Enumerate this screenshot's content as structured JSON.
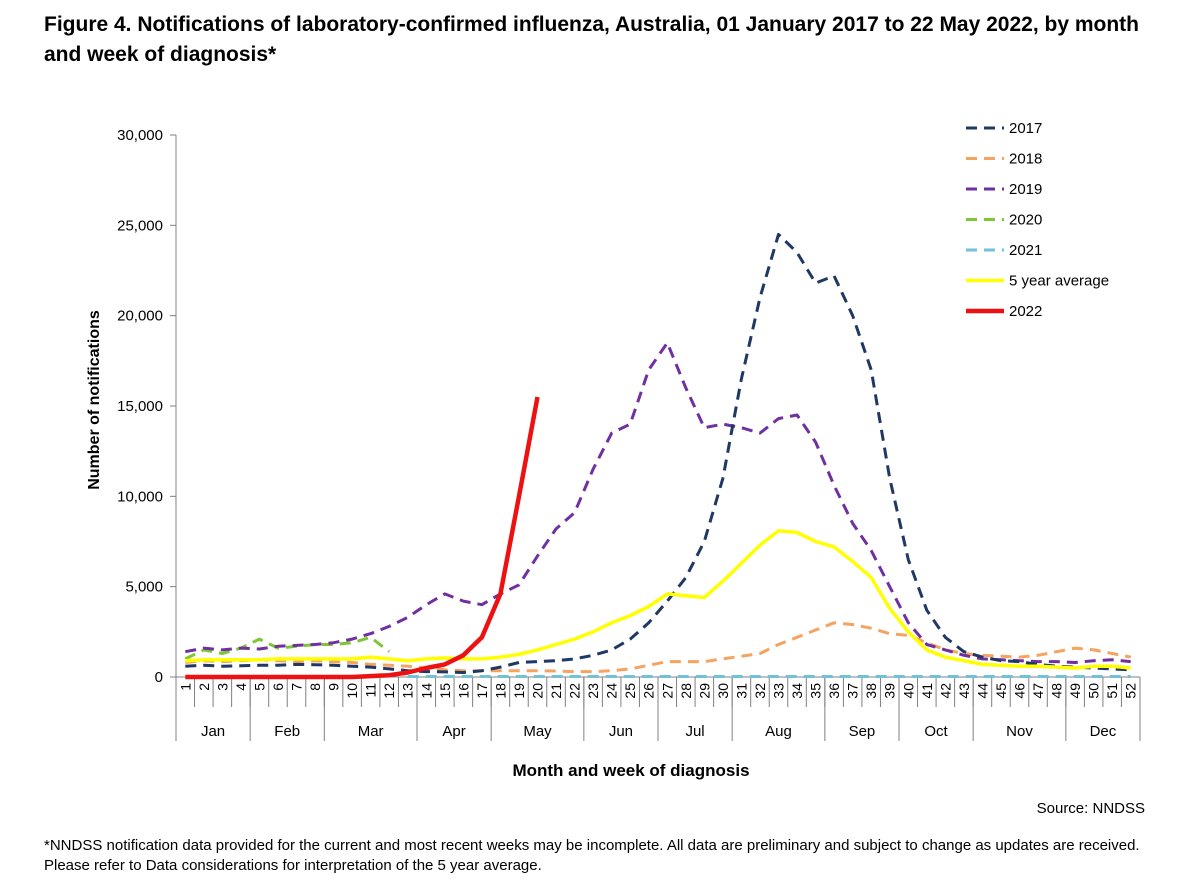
{
  "figure": {
    "title": "Figure 4. Notifications of laboratory-confirmed influenza, Australia, 01 January 2017 to 22 May 2022, by month and week of diagnosis*",
    "source": "Source: NNDSS",
    "footnote": "*NNDSS notification data provided for the current and most recent weeks may be incomplete. All data are preliminary and subject to change as updates are received. Please refer to Data considerations for interpretation of the 5 year average."
  },
  "chart_data": {
    "type": "line",
    "xlabel": "Month and week of diagnosis",
    "ylabel": "Number of notifications",
    "ylim": [
      0,
      30000
    ],
    "yticks": [
      0,
      5000,
      10000,
      15000,
      20000,
      25000,
      30000
    ],
    "ytick_labels": [
      "0",
      "5,000",
      "10,000",
      "15,000",
      "20,000",
      "25,000",
      "30,000"
    ],
    "weeks": [
      "1",
      "2",
      "3",
      "4",
      "5",
      "6",
      "7",
      "8",
      "9",
      "10",
      "11",
      "12",
      "13",
      "14",
      "15",
      "16",
      "17",
      "18",
      "19",
      "20",
      "21",
      "22",
      "23",
      "24",
      "25",
      "26",
      "27",
      "28",
      "29",
      "30",
      "31",
      "32",
      "33",
      "34",
      "35",
      "36",
      "37",
      "38",
      "39",
      "40",
      "41",
      "42",
      "43",
      "44",
      "45",
      "46",
      "47",
      "48",
      "49",
      "50",
      "51",
      "52"
    ],
    "months": [
      {
        "label": "Jan",
        "start": 1,
        "end": 4
      },
      {
        "label": "Feb",
        "start": 5,
        "end": 8
      },
      {
        "label": "Mar",
        "start": 9,
        "end": 13
      },
      {
        "label": "Apr",
        "start": 14,
        "end": 17
      },
      {
        "label": "May",
        "start": 18,
        "end": 22
      },
      {
        "label": "Jun",
        "start": 23,
        "end": 26
      },
      {
        "label": "Jul",
        "start": 27,
        "end": 30
      },
      {
        "label": "Aug",
        "start": 31,
        "end": 35
      },
      {
        "label": "Sep",
        "start": 36,
        "end": 39
      },
      {
        "label": "Oct",
        "start": 40,
        "end": 43
      },
      {
        "label": "Nov",
        "start": 44,
        "end": 48
      },
      {
        "label": "Dec",
        "start": 49,
        "end": 52
      }
    ],
    "legend_position": "top-right",
    "series": [
      {
        "name": "2017",
        "color": "#1f3864",
        "style": "dashed",
        "values": [
          600,
          650,
          600,
          620,
          650,
          650,
          700,
          680,
          650,
          600,
          550,
          450,
          350,
          300,
          280,
          250,
          350,
          550,
          800,
          850,
          900,
          1000,
          1200,
          1500,
          2100,
          3000,
          4200,
          5500,
          7500,
          11000,
          16500,
          21000,
          24500,
          23500,
          21800,
          22200,
          20000,
          17000,
          11000,
          6500,
          3700,
          2200,
          1400,
          1100,
          900,
          850,
          700,
          600,
          550,
          500,
          450,
          400
        ]
      },
      {
        "name": "2018",
        "color": "#f4a460",
        "style": "dashed",
        "values": [
          800,
          900,
          850,
          900,
          950,
          900,
          850,
          900,
          850,
          800,
          700,
          650,
          600,
          500,
          400,
          350,
          350,
          350,
          350,
          350,
          330,
          300,
          300,
          350,
          450,
          650,
          850,
          850,
          850,
          1000,
          1150,
          1300,
          1800,
          2200,
          2600,
          3000,
          2900,
          2700,
          2400,
          2300,
          1900,
          1500,
          1300,
          1200,
          1150,
          1100,
          1200,
          1400,
          1600,
          1500,
          1300,
          1100
        ]
      },
      {
        "name": "2019",
        "color": "#7030a0",
        "style": "dashed",
        "values": [
          1400,
          1600,
          1500,
          1600,
          1550,
          1700,
          1750,
          1800,
          1900,
          2100,
          2400,
          2800,
          3300,
          4000,
          4600,
          4200,
          4000,
          4600,
          5100,
          6700,
          8200,
          9100,
          11500,
          13500,
          14000,
          17000,
          18500,
          16000,
          13800,
          14000,
          13800,
          13500,
          14300,
          14500,
          13000,
          10600,
          8500,
          7000,
          5000,
          3000,
          1800,
          1500,
          1200,
          1000,
          950,
          900,
          850,
          850,
          800,
          900,
          950,
          850
        ]
      },
      {
        "name": "2020",
        "color": "#7ec636",
        "style": "dashed",
        "values": [
          1000,
          1500,
          1300,
          1600,
          2100,
          1600,
          1700,
          1800,
          1800,
          1900,
          2200,
          1400,
          null,
          null,
          null,
          null,
          null,
          null,
          null,
          null,
          null,
          null,
          null,
          null,
          null,
          null,
          null,
          null,
          null,
          null,
          null,
          null,
          null,
          null,
          null,
          null,
          null,
          null,
          null,
          null,
          null,
          null,
          null,
          null,
          null,
          null,
          null,
          null,
          null,
          null,
          null,
          null
        ]
      },
      {
        "name": "2021",
        "color": "#6fc2d8",
        "style": "dashed",
        "values": [
          null,
          null,
          null,
          null,
          null,
          null,
          null,
          null,
          null,
          null,
          null,
          null,
          30,
          30,
          30,
          30,
          30,
          30,
          30,
          30,
          30,
          30,
          30,
          30,
          30,
          30,
          30,
          30,
          30,
          30,
          30,
          30,
          30,
          30,
          30,
          30,
          30,
          30,
          30,
          30,
          30,
          30,
          30,
          30,
          30,
          30,
          30,
          30,
          30,
          30,
          30,
          30
        ]
      },
      {
        "name": "5 year average",
        "color": "#ffff00",
        "style": "solid",
        "values": [
          900,
          950,
          950,
          950,
          950,
          1000,
          1000,
          1000,
          1000,
          1000,
          1100,
          1000,
          900,
          1000,
          1050,
          1000,
          1000,
          1100,
          1250,
          1500,
          1800,
          2100,
          2500,
          3000,
          3400,
          3900,
          4600,
          4500,
          4400,
          5300,
          6300,
          7300,
          8100,
          8000,
          7500,
          7200,
          6400,
          5500,
          3800,
          2500,
          1500,
          1100,
          900,
          700,
          650,
          600,
          600,
          550,
          500,
          600,
          600,
          500
        ]
      },
      {
        "name": "2022",
        "color": "#ee1111",
        "style": "solid-thick",
        "values": [
          0,
          0,
          0,
          0,
          0,
          0,
          0,
          0,
          0,
          0,
          50,
          100,
          250,
          500,
          700,
          1200,
          2200,
          4600,
          10000,
          15500,
          null,
          null,
          null,
          null,
          null,
          null,
          null,
          null,
          null,
          null,
          null,
          null,
          null,
          null,
          null,
          null,
          null,
          null,
          null,
          null,
          null,
          null,
          null,
          null,
          null,
          null,
          null,
          null,
          null,
          null,
          null,
          null
        ]
      }
    ]
  }
}
